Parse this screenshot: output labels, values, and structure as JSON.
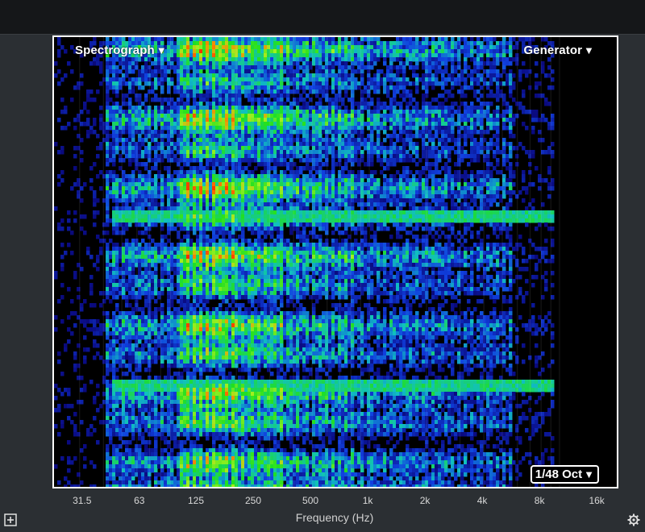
{
  "window": {
    "background": "#2b2f33"
  },
  "controls": {
    "spectrograph_label": "Spectrograph",
    "generator_label": "Generator",
    "resolution_label": "1/48 Oct"
  },
  "chart_data": {
    "type": "heatmap",
    "xlabel": "Frequency (Hz)",
    "xscale": "log",
    "xlim": [
      22,
      20000
    ],
    "x_ticks": [
      {
        "value": 31.5,
        "label": "31.5"
      },
      {
        "value": 63,
        "label": "63"
      },
      {
        "value": 125,
        "label": "125"
      },
      {
        "value": 250,
        "label": "250"
      },
      {
        "value": 500,
        "label": "500"
      },
      {
        "value": 1000,
        "label": "1k"
      },
      {
        "value": 2000,
        "label": "2k"
      },
      {
        "value": 4000,
        "label": "4k"
      },
      {
        "value": 8000,
        "label": "8k"
      },
      {
        "value": 16000,
        "label": "16k"
      }
    ],
    "colormap": [
      "#000000",
      "#0a0a80",
      "#1040e0",
      "#10c0c0",
      "#20e020",
      "#a0f020",
      "#ff8000",
      "#ff2000",
      "#ffffff"
    ],
    "grid": true
  },
  "icons": {
    "add": "plus-square-icon",
    "settings": "gear-icon",
    "marker": "arrow-left-icon"
  }
}
